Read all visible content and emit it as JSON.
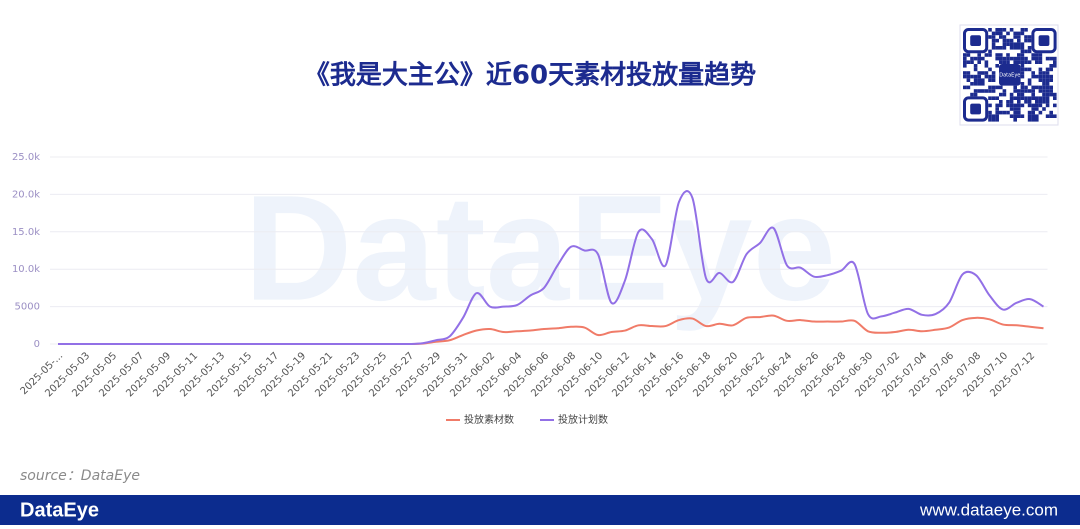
{
  "chart_data": {
    "type": "line",
    "title": "《我是大主公》近60天素材投放量趋势",
    "categories": [
      "2025-05-...",
      null,
      "2025-05-03",
      null,
      "2025-05-05",
      null,
      "2025-05-07",
      null,
      "2025-05-09",
      null,
      "2025-05-11",
      null,
      "2025-05-13",
      null,
      "2025-05-15",
      null,
      "2025-05-17",
      null,
      "2025-05-19",
      null,
      "2025-05-21",
      null,
      "2025-05-23",
      null,
      "2025-05-25",
      null,
      "2025-05-27",
      null,
      "2025-05-29",
      null,
      "2025-05-31",
      null,
      "2025-06-02",
      null,
      "2025-06-04",
      null,
      "2025-06-06",
      null,
      "2025-06-08",
      null,
      "2025-06-10",
      null,
      "2025-06-12",
      null,
      "2025-06-14",
      null,
      "2025-06-16",
      null,
      "2025-06-18",
      null,
      "2025-06-20",
      null,
      "2025-06-22",
      null,
      "2025-06-24",
      null,
      "2025-06-26",
      null,
      "2025-06-28",
      null,
      "2025-06-30",
      null,
      "2025-07-02",
      null,
      "2025-07-04",
      null,
      "2025-07-06",
      null,
      "2025-07-08",
      null,
      "2025-07-10",
      null,
      "2025-07-12",
      null
    ],
    "series": [
      {
        "name": "投放素材数",
        "color": "#f07b68",
        "values": [
          0,
          0,
          0,
          0,
          0,
          0,
          0,
          0,
          0,
          0,
          0,
          0,
          0,
          0,
          0,
          0,
          0,
          0,
          0,
          0,
          0,
          0,
          0,
          0,
          0,
          0,
          0,
          50,
          300,
          500,
          1200,
          1800,
          2000,
          1600,
          1700,
          1800,
          2000,
          2100,
          2300,
          2200,
          1200,
          1600,
          1800,
          2500,
          2400,
          2400,
          3200,
          3400,
          2400,
          2700,
          2500,
          3500,
          3600,
          3800,
          3100,
          3200,
          3000,
          3000,
          3000,
          3100,
          1700,
          1500,
          1600,
          1900,
          1700,
          1900,
          2200,
          3200,
          3500,
          3300,
          2600,
          2500,
          2300,
          2100
        ]
      },
      {
        "name": "投放计划数",
        "color": "#9270e6",
        "values": [
          0,
          0,
          0,
          0,
          0,
          0,
          0,
          0,
          0,
          0,
          0,
          0,
          0,
          0,
          0,
          0,
          0,
          0,
          0,
          0,
          0,
          0,
          0,
          0,
          0,
          0,
          0,
          100,
          500,
          1000,
          3500,
          6800,
          5000,
          5000,
          5200,
          6500,
          7500,
          10500,
          13000,
          12500,
          12000,
          5500,
          8500,
          15000,
          14000,
          10500,
          19000,
          19500,
          8800,
          9500,
          8300,
          12000,
          13500,
          15500,
          10500,
          10200,
          9000,
          9200,
          9800,
          10700,
          4000,
          3700,
          4200,
          4700,
          3900,
          4000,
          5500,
          9300,
          9200,
          6500,
          4600,
          5500,
          6000,
          5000
        ]
      }
    ],
    "ylim": [
      0,
      25000
    ],
    "yticks": [
      0,
      5000,
      {
        "value": 10000,
        "label": "10.0k"
      },
      {
        "value": 15000,
        "label": "15.0k"
      },
      {
        "value": 20000,
        "label": "20.0k"
      },
      {
        "value": 25000,
        "label": "25.0k"
      }
    ],
    "grid": true,
    "legend": "bottom"
  },
  "brand": "DataEye",
  "source": "source：DataEye",
  "url": "www.dataeye.com"
}
